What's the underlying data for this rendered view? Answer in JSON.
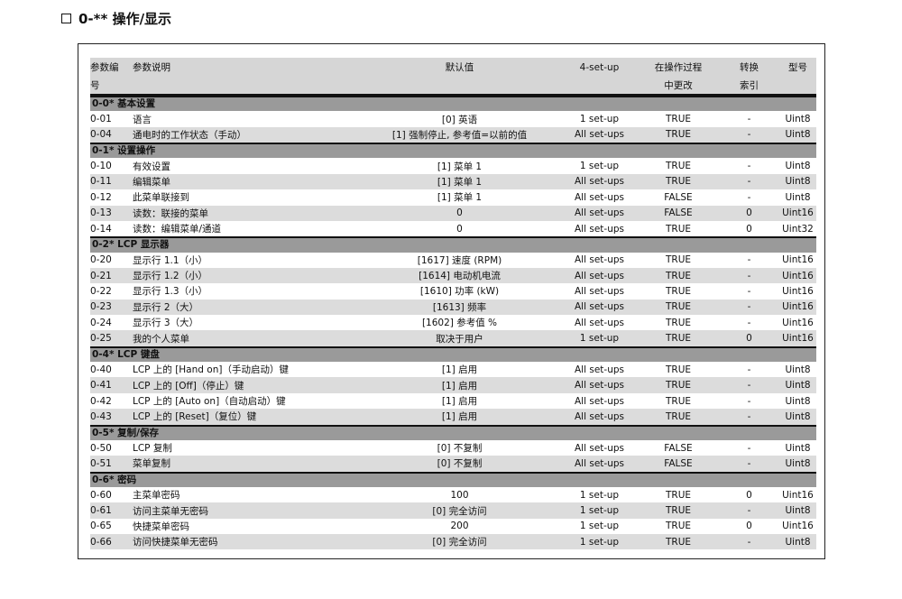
{
  "title": "0-** 操作/显示",
  "headers": {
    "id": [
      "参数编",
      "号"
    ],
    "desc": "参数说明",
    "default": "默认值",
    "setup": "4-set-up",
    "change": [
      "在操作过程",
      "中更改"
    ],
    "conv": [
      "转换",
      "索引"
    ],
    "type": "型号"
  },
  "groups": [
    {
      "title": "0-0* 基本设置",
      "rows": [
        [
          "0-01",
          "语言",
          "[0] 英语",
          "1 set-up",
          "TRUE",
          "-",
          "Uint8"
        ],
        [
          "0-04",
          "通电时的工作状态（手动）",
          "[1] 强制停止, 参考值=以前的值",
          "All set-ups",
          "TRUE",
          "-",
          "Uint8"
        ]
      ]
    },
    {
      "title": "0-1* 设置操作",
      "rows": [
        [
          "0-10",
          "有效设置",
          "[1] 菜单 1",
          "1 set-up",
          "TRUE",
          "-",
          "Uint8"
        ],
        [
          "0-11",
          "编辑菜单",
          "[1] 菜单 1",
          "All set-ups",
          "TRUE",
          "-",
          "Uint8"
        ],
        [
          "0-12",
          "此菜单联接到",
          "[1] 菜单 1",
          "All set-ups",
          "FALSE",
          "-",
          "Uint8"
        ],
        [
          "0-13",
          "读数：联接的菜单",
          "0",
          "All set-ups",
          "FALSE",
          "0",
          "Uint16"
        ],
        [
          "0-14",
          "读数：编辑菜单/通道",
          "0",
          "All set-ups",
          "TRUE",
          "0",
          "Uint32"
        ]
      ]
    },
    {
      "title": "0-2* LCP 显示器",
      "rows": [
        [
          "0-20",
          "显示行 1.1（小）",
          "[1617] 速度 (RPM)",
          "All set-ups",
          "TRUE",
          "-",
          "Uint16"
        ],
        [
          "0-21",
          "显示行 1.2（小）",
          "[1614] 电动机电流",
          "All set-ups",
          "TRUE",
          "-",
          "Uint16"
        ],
        [
          "0-22",
          "显示行 1.3（小）",
          "[1610] 功率 (kW)",
          "All set-ups",
          "TRUE",
          "-",
          "Uint16"
        ],
        [
          "0-23",
          "显示行 2（大）",
          "[1613] 频率",
          "All set-ups",
          "TRUE",
          "-",
          "Uint16"
        ],
        [
          "0-24",
          "显示行 3（大）",
          "[1602] 参考值 %",
          "All set-ups",
          "TRUE",
          "-",
          "Uint16"
        ],
        [
          "0-25",
          "我的个人菜单",
          "取决于用户",
          "1 set-up",
          "TRUE",
          "0",
          "Uint16"
        ]
      ]
    },
    {
      "title": "0-4* LCP 键盘",
      "rows": [
        [
          "0-40",
          "LCP 上的 [Hand on]（手动启动）键",
          "[1] 启用",
          "All set-ups",
          "TRUE",
          "-",
          "Uint8"
        ],
        [
          "0-41",
          "LCP 上的 [Off]（停止）键",
          "[1] 启用",
          "All set-ups",
          "TRUE",
          "-",
          "Uint8"
        ],
        [
          "0-42",
          "LCP 上的 [Auto on]（自动启动）键",
          "[1] 启用",
          "All set-ups",
          "TRUE",
          "-",
          "Uint8"
        ],
        [
          "0-43",
          "LCP 上的 [Reset]（复位）键",
          "[1] 启用",
          "All set-ups",
          "TRUE",
          "-",
          "Uint8"
        ]
      ]
    },
    {
      "title": "0-5* 复制/保存",
      "rows": [
        [
          "0-50",
          "LCP 复制",
          "[0] 不复制",
          "All set-ups",
          "FALSE",
          "-",
          "Uint8"
        ],
        [
          "0-51",
          "菜单复制",
          "[0] 不复制",
          "All set-ups",
          "FALSE",
          "-",
          "Uint8"
        ]
      ]
    },
    {
      "title": "0-6* 密码",
      "rows": [
        [
          "0-60",
          "主菜单密码",
          "100",
          "1 set-up",
          "TRUE",
          "0",
          "Uint16"
        ],
        [
          "0-61",
          "访问主菜单无密码",
          "[0] 完全访问",
          "1 set-up",
          "TRUE",
          "-",
          "Uint8"
        ],
        [
          "0-65",
          "快捷菜单密码",
          "200",
          "1 set-up",
          "TRUE",
          "0",
          "Uint16"
        ],
        [
          "0-66",
          "访问快捷菜单无密码",
          "[0] 完全访问",
          "1 set-up",
          "TRUE",
          "-",
          "Uint8"
        ]
      ]
    }
  ]
}
